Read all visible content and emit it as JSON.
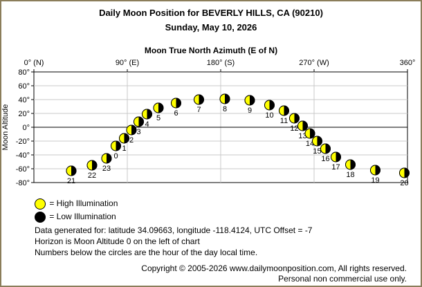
{
  "header": {
    "title": "Daily Moon Position for BEVERLY HILLS, CA (90210)",
    "subtitle": "Sunday, May 10, 2026"
  },
  "legend": {
    "high": "= High Illumination",
    "low": "= Low Illumination"
  },
  "notes": {
    "line1": "Data generated for: latitude 34.09663, longitude -118.4124, UTC Offset = -7",
    "line2": "Horizon is Moon Altitude 0 on the left of chart",
    "line3": "Numbers below the circles are the hour of the day local time."
  },
  "footer": {
    "copyright": "Copyright © 2005-2026 www.dailymoonposition.com, All rights reserved.",
    "license": "Personal non commercial use only."
  },
  "colors": {
    "lit": "#ffff00",
    "dark": "#000000",
    "frame": "#8b7d5a",
    "grid": "#c8c8c8"
  },
  "chart_data": {
    "type": "scatter",
    "title": "Moon True North Azimuth (E of N)",
    "xlabel": "Moon True North Azimuth (E of N)",
    "ylabel": "Moon Altitude",
    "xlim": [
      0,
      360
    ],
    "ylim": [
      -80,
      80
    ],
    "x_ticks": [
      {
        "value": 0,
        "label": "0° (N)"
      },
      {
        "value": 90,
        "label": "90° (E)"
      },
      {
        "value": 180,
        "label": "180° (S)"
      },
      {
        "value": 270,
        "label": "270° (W)"
      },
      {
        "value": 360,
        "label": "360°"
      }
    ],
    "y_ticks": [
      {
        "value": 80,
        "label": "80°"
      },
      {
        "value": 60,
        "label": "60°"
      },
      {
        "value": 40,
        "label": "40°"
      },
      {
        "value": 20,
        "label": "20°"
      },
      {
        "value": 0,
        "label": "0°"
      },
      {
        "value": -20,
        "label": "-20°"
      },
      {
        "value": -40,
        "label": "-40°"
      },
      {
        "value": -60,
        "label": "-60°"
      },
      {
        "value": -80,
        "label": "-80°"
      }
    ],
    "grid": true,
    "points": [
      {
        "hour": "0",
        "azimuth": 79,
        "altitude": -27
      },
      {
        "hour": "1",
        "azimuth": 87,
        "altitude": -16
      },
      {
        "hour": "2",
        "azimuth": 94,
        "altitude": -4
      },
      {
        "hour": "3",
        "azimuth": 101,
        "altitude": 8
      },
      {
        "hour": "4",
        "azimuth": 109,
        "altitude": 19
      },
      {
        "hour": "5",
        "azimuth": 120,
        "altitude": 28
      },
      {
        "hour": "6",
        "azimuth": 137,
        "altitude": 35
      },
      {
        "hour": "7",
        "azimuth": 159,
        "altitude": 40
      },
      {
        "hour": "8",
        "azimuth": 184,
        "altitude": 41
      },
      {
        "hour": "9",
        "azimuth": 208,
        "altitude": 39
      },
      {
        "hour": "10",
        "azimuth": 227,
        "altitude": 32
      },
      {
        "hour": "11",
        "azimuth": 241,
        "altitude": 24
      },
      {
        "hour": "12",
        "azimuth": 251,
        "altitude": 13
      },
      {
        "hour": "13",
        "azimuth": 259,
        "altitude": 2
      },
      {
        "hour": "14",
        "azimuth": 266,
        "altitude": -9
      },
      {
        "hour": "15",
        "azimuth": 273,
        "altitude": -20
      },
      {
        "hour": "16",
        "azimuth": 281,
        "altitude": -31
      },
      {
        "hour": "17",
        "azimuth": 291,
        "altitude": -43
      },
      {
        "hour": "18",
        "azimuth": 305,
        "altitude": -54
      },
      {
        "hour": "19",
        "azimuth": 329,
        "altitude": -62
      },
      {
        "hour": "20",
        "azimuth": 357,
        "altitude": -66
      },
      {
        "hour": "21",
        "azimuth": 36,
        "altitude": -63
      },
      {
        "hour": "22",
        "azimuth": 56,
        "altitude": -55
      },
      {
        "hour": "23",
        "azimuth": 70,
        "altitude": -45
      }
    ]
  }
}
